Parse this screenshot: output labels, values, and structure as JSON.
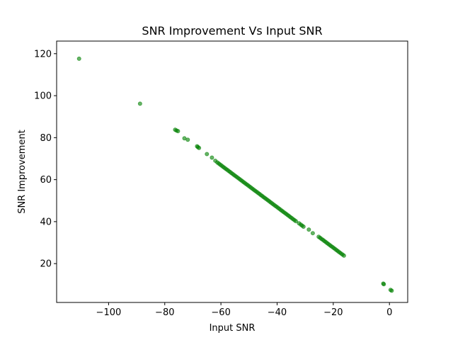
{
  "chart_data": {
    "type": "scatter",
    "title": "SNR Improvement Vs Input SNR",
    "xlabel": "Input SNR",
    "ylabel": "SNR Improvement",
    "xlim": [
      -118.5,
      6.5
    ],
    "ylim": [
      1.5,
      126
    ],
    "xticks": [
      -100,
      -80,
      -60,
      -40,
      -20,
      0
    ],
    "xtick_labels": [
      "−100",
      "−80",
      "−60",
      "−40",
      "−20",
      "0"
    ],
    "yticks": [
      20,
      40,
      60,
      80,
      100,
      120
    ],
    "ytick_labels": [
      "20",
      "40",
      "60",
      "80",
      "100",
      "120"
    ],
    "grid": false,
    "marker_color": "#008000",
    "marker_alpha": 0.6,
    "x": [
      -110.5,
      -88.8,
      -76.3,
      -75.8,
      -75.3,
      -73,
      -71.8,
      -68.5,
      -68.2,
      -67.8,
      -65,
      -63.2,
      -62,
      -61.3,
      -60.8,
      -60.3,
      -59.8,
      -59.3,
      -58.8,
      -58.3,
      -57.8,
      -57.3,
      -56.8,
      -56.3,
      -55.8,
      -55.3,
      -54.8,
      -54.3,
      -53.8,
      -53.3,
      -52.8,
      -52.3,
      -51.8,
      -51.3,
      -50.8,
      -50.3,
      -49.8,
      -49.3,
      -48.8,
      -48.3,
      -47.8,
      -47.3,
      -46.8,
      -46.3,
      -45.8,
      -45.3,
      -44.8,
      -44.3,
      -43.8,
      -43.3,
      -42.8,
      -42.3,
      -41.8,
      -41.3,
      -40.8,
      -40.3,
      -39.8,
      -39.3,
      -38.8,
      -38.3,
      -37.8,
      -37.3,
      -36.8,
      -36.3,
      -35.8,
      -35.3,
      -34.8,
      -34.3,
      -33.8,
      -33.3,
      -32.2,
      -31.6,
      -31.1,
      -30.6,
      -28.7,
      -27.3,
      -25.2,
      -24.7,
      -24.2,
      -23.7,
      -23.2,
      -22.7,
      -22.2,
      -21.7,
      -21.2,
      -20.7,
      -20.2,
      -19.7,
      -19.2,
      -18.7,
      -18.2,
      -17.7,
      -17.2,
      -16.7,
      -16.2,
      -2.2,
      -2,
      0.4,
      0.8
    ],
    "y": [
      117.6,
      96.2,
      83.8,
      83.4,
      83.1,
      79.7,
      79,
      75.9,
      75.5,
      75.1,
      72.2,
      70.5,
      69,
      68.2,
      67.7,
      67.2,
      66.7,
      66.2,
      65.7,
      65.2,
      64.7,
      64.2,
      63.7,
      63.2,
      62.7,
      62.2,
      61.7,
      61.2,
      60.7,
      60.2,
      59.7,
      59.2,
      58.7,
      58.2,
      57.7,
      57.2,
      56.7,
      56.2,
      55.7,
      55.2,
      54.7,
      54.2,
      53.7,
      53.2,
      52.7,
      52.2,
      51.7,
      51.2,
      50.7,
      50.2,
      49.7,
      49.2,
      48.7,
      48.2,
      47.7,
      47.2,
      46.7,
      46.2,
      45.7,
      45.2,
      44.7,
      44.2,
      43.7,
      43.2,
      42.7,
      42.2,
      41.7,
      41.2,
      40.7,
      40.2,
      39.2,
      38.6,
      38.1,
      37.6,
      36.2,
      34.5,
      32.8,
      32.3,
      31.8,
      31.3,
      30.8,
      30.3,
      29.8,
      29.3,
      28.8,
      28.3,
      27.8,
      27.3,
      26.8,
      26.3,
      25.8,
      25.3,
      24.8,
      24.3,
      23.8,
      10.5,
      10.2,
      7.5,
      7.1
    ]
  }
}
